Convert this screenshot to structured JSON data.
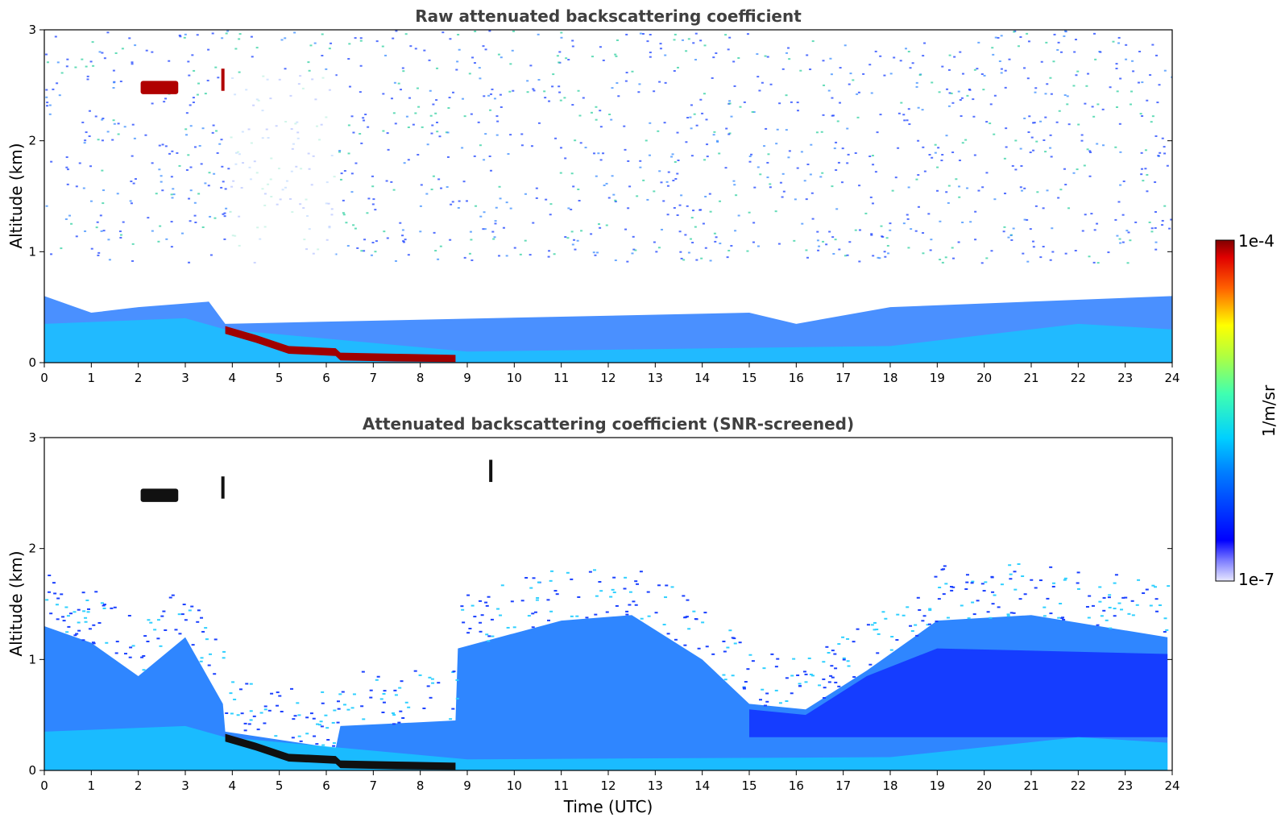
{
  "chart_data": [
    {
      "type": "heatmap",
      "title": "Raw attenuated backscattering coefficient",
      "xlabel": "",
      "ylabel": "Altitude (km)",
      "xlim": [
        0,
        24
      ],
      "ylim": [
        0,
        3
      ],
      "x_ticks": [
        "0",
        "1",
        "2",
        "3",
        "4",
        "5",
        "6",
        "7",
        "8",
        "9",
        "10",
        "11",
        "12",
        "13",
        "14",
        "15",
        "16",
        "17",
        "18",
        "19",
        "20",
        "21",
        "22",
        "23",
        "24"
      ],
      "y_ticks": [
        "0",
        "1",
        "2",
        "3"
      ],
      "noise_level_by_segment": [
        {
          "x": [
            0,
            3.85
          ],
          "level": 0.45
        },
        {
          "x": [
            3.85,
            6.25
          ],
          "level": 0.62
        },
        {
          "x": [
            6.25,
            8.75
          ],
          "level": 0.42
        },
        {
          "x": [
            8.75,
            15.4
          ],
          "level": 0.5
        },
        {
          "x": [
            15.4,
            24
          ],
          "level": 0.42
        }
      ],
      "boundary_layer_top_km": [
        {
          "x": 0,
          "y": 0.6
        },
        {
          "x": 1,
          "y": 0.45
        },
        {
          "x": 2,
          "y": 0.5
        },
        {
          "x": 3.5,
          "y": 0.55
        },
        {
          "x": 3.85,
          "y": 0.35
        },
        {
          "x": 15,
          "y": 0.45
        },
        {
          "x": 16,
          "y": 0.35
        },
        {
          "x": 18,
          "y": 0.5
        },
        {
          "x": 24,
          "y": 0.6
        }
      ],
      "fog_layer_km": [
        {
          "x": 3.85,
          "y": 0.3
        },
        {
          "x": 4.5,
          "y": 0.22
        },
        {
          "x": 5.2,
          "y": 0.12
        },
        {
          "x": 6.2,
          "y": 0.1
        },
        {
          "x": 6.3,
          "y": 0.06
        },
        {
          "x": 7.5,
          "y": 0.05
        },
        {
          "x": 8.75,
          "y": 0.04
        }
      ],
      "clouds": [
        {
          "x": [
            2.05,
            2.85
          ],
          "y": 2.48
        },
        {
          "x": 3.8,
          "y": 2.55
        }
      ]
    },
    {
      "type": "heatmap",
      "title": "Attenuated backscattering coefficient (SNR-screened)",
      "xlabel": "Time (UTC)",
      "ylabel": "Altitude (km)",
      "xlim": [
        0,
        24
      ],
      "ylim": [
        0,
        3
      ],
      "x_ticks": [
        "0",
        "1",
        "2",
        "3",
        "4",
        "5",
        "6",
        "7",
        "8",
        "9",
        "10",
        "11",
        "12",
        "13",
        "14",
        "15",
        "16",
        "17",
        "18",
        "19",
        "20",
        "21",
        "22",
        "23",
        "24"
      ],
      "y_ticks": [
        "0",
        "1",
        "2",
        "3"
      ],
      "signal_top_km": [
        {
          "x": 0,
          "y": 1.3
        },
        {
          "x": 1,
          "y": 1.15
        },
        {
          "x": 2,
          "y": 0.85
        },
        {
          "x": 3,
          "y": 1.2
        },
        {
          "x": 3.8,
          "y": 0.6
        },
        {
          "x": 3.85,
          "y": 0.35
        },
        {
          "x": 6.2,
          "y": 0.2
        },
        {
          "x": 6.3,
          "y": 0.4
        },
        {
          "x": 8.75,
          "y": 0.45
        },
        {
          "x": 8.8,
          "y": 1.1
        },
        {
          "x": 11,
          "y": 1.35
        },
        {
          "x": 12.5,
          "y": 1.4
        },
        {
          "x": 14,
          "y": 1.0
        },
        {
          "x": 15,
          "y": 0.6
        },
        {
          "x": 16.2,
          "y": 0.55
        },
        {
          "x": 17.5,
          "y": 0.9
        },
        {
          "x": 19,
          "y": 1.35
        },
        {
          "x": 21,
          "y": 1.4
        },
        {
          "x": 23.9,
          "y": 1.2
        }
      ],
      "fog_layer_km": [
        {
          "x": 3.85,
          "y": 0.3
        },
        {
          "x": 4.5,
          "y": 0.22
        },
        {
          "x": 5.2,
          "y": 0.12
        },
        {
          "x": 6.2,
          "y": 0.1
        },
        {
          "x": 6.3,
          "y": 0.06
        },
        {
          "x": 7.5,
          "y": 0.05
        },
        {
          "x": 8.75,
          "y": 0.04
        }
      ],
      "clouds": [
        {
          "x": [
            2.05,
            2.85
          ],
          "y": 2.48
        },
        {
          "x": 3.8,
          "y": 2.55
        },
        {
          "x": 9.5,
          "y": 2.7
        }
      ]
    }
  ],
  "colorbar": {
    "max_label": "1e-4",
    "min_label": "1e-7",
    "label": "1/m/sr",
    "scale": "log",
    "colormap": "jet"
  }
}
